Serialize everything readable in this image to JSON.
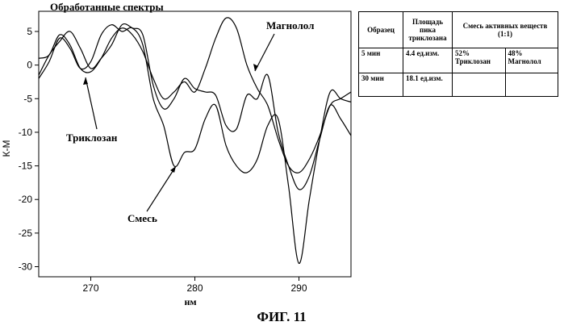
{
  "chart_data": {
    "type": "line",
    "title": "Обработанные спектры",
    "xlabel": "нм",
    "ylabel": "К-М",
    "xlim": [
      265,
      295
    ],
    "ylim": [
      -31.5,
      8
    ],
    "xticks": [
      270,
      280,
      290
    ],
    "yticks": [
      5,
      0,
      -5,
      -10,
      -15,
      -20,
      -25,
      -30
    ],
    "series": [
      {
        "name": "Магнолол",
        "x": [
          265,
          266,
          267,
          268,
          269,
          270,
          271,
          272,
          273,
          274,
          275,
          276,
          277,
          278,
          279,
          280,
          281,
          282,
          283,
          284,
          285,
          286,
          287,
          288,
          289,
          290,
          291,
          292,
          293,
          294,
          295
        ],
        "y": [
          1,
          1.5,
          4.5,
          3,
          -0.5,
          -1,
          1,
          4,
          5.5,
          4.5,
          2,
          -2,
          -5,
          -4,
          -2.5,
          -4,
          -0.5,
          4,
          7,
          5.5,
          0,
          -3.5,
          -6,
          -11,
          -15,
          -16,
          -14,
          -10.5,
          -6,
          -5,
          -4
        ]
      },
      {
        "name": "Триклозан",
        "x": [
          265,
          266,
          267,
          268,
          269,
          270,
          271,
          272,
          273,
          274,
          275,
          276,
          277,
          278,
          279,
          280,
          281,
          282,
          283,
          284,
          285,
          286,
          287,
          288,
          289,
          290,
          291,
          292,
          293,
          294,
          295
        ],
        "y": [
          -1.5,
          1.5,
          3.5,
          5,
          2.5,
          -0.5,
          1,
          3,
          6,
          5.5,
          4.5,
          -3,
          -6.5,
          -5,
          -2,
          -3.5,
          -4,
          -4.5,
          -9,
          -9.5,
          -4.5,
          -5,
          -1.5,
          -10,
          -15,
          -18.5,
          -16.5,
          -11,
          -6,
          -8,
          -10.5
        ]
      },
      {
        "name": "Смесь",
        "x": [
          265,
          266,
          267,
          268,
          269,
          270,
          271,
          272,
          273,
          274,
          275,
          276,
          277,
          278,
          279,
          280,
          281,
          282,
          283,
          284,
          285,
          286,
          287,
          288,
          289,
          290,
          291,
          292,
          293,
          294,
          295
        ],
        "y": [
          -2,
          0.5,
          4,
          2.5,
          -0.5,
          0.5,
          4.5,
          6,
          5,
          5.5,
          3,
          -5,
          -9,
          -15,
          -13,
          -12.5,
          -8,
          -6,
          -12,
          -15,
          -16,
          -14,
          -9,
          -8,
          -18,
          -29.5,
          -20,
          -11,
          -4,
          -5,
          -5.5
        ]
      }
    ],
    "annotations": [
      "Магнолол",
      "Триклозан",
      "Смесь"
    ]
  },
  "table": {
    "headers": [
      "Образец",
      "Площадь пика триклозана",
      "Смесь активных веществ (1:1)"
    ],
    "rows": [
      [
        "5 мин",
        "4.4 ед.изм.",
        "52% Триклозан",
        "48% Магнолол"
      ],
      [
        "30 мин",
        "18.1 ед.изм.",
        "",
        ""
      ]
    ]
  },
  "caption": "ФИГ. 11"
}
